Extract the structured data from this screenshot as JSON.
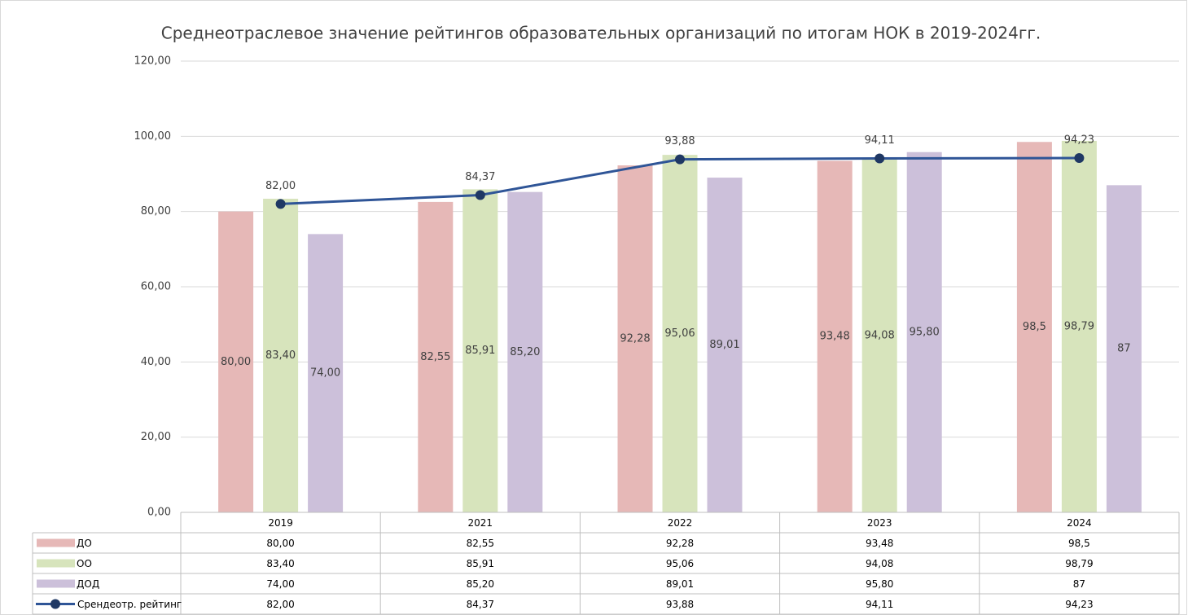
{
  "chart_data": {
    "type": "bar",
    "title": "Среднеотраслевое значение рейтингов образовательных организаций по итогам НОК в 2019-2024гг.",
    "categories": [
      "2019",
      "2021",
      "2022",
      "2023",
      "2024"
    ],
    "series": [
      {
        "name": "ДО",
        "type": "bar",
        "color": "#e6b8b7",
        "values": [
          80,
          82.55,
          92.28,
          93.48,
          98.5
        ],
        "value_labels": [
          "80,00",
          "82,55",
          "92,28",
          "93,48",
          "98,5"
        ]
      },
      {
        "name": "ОО",
        "type": "bar",
        "color": "#d7e4bc",
        "values": [
          83.4,
          85.91,
          95.06,
          94.08,
          98.79
        ],
        "value_labels": [
          "83,40",
          "85,91",
          "95,06",
          "94,08",
          "98,79"
        ]
      },
      {
        "name": "ДОД",
        "type": "bar",
        "color": "#ccc0da",
        "values": [
          74,
          85.2,
          89.01,
          95.8,
          87
        ],
        "value_labels": [
          "74,00",
          "85,20",
          "89,01",
          "95,80",
          "87"
        ]
      },
      {
        "name": "Срендеотр. рейтинг",
        "type": "line",
        "color": "#2f5597",
        "values": [
          82,
          84.37,
          93.88,
          94.11,
          94.23
        ],
        "value_labels": [
          "82,00",
          "84,37",
          "93,88",
          "94,11",
          "94,23"
        ]
      }
    ],
    "ylim": [
      0,
      120
    ],
    "yticks": [
      {
        "value": 0,
        "label": "0,00"
      },
      {
        "value": 20,
        "label": "20,00"
      },
      {
        "value": 40,
        "label": "40,00"
      },
      {
        "value": 60,
        "label": "60,00"
      },
      {
        "value": 80,
        "label": "80,00"
      },
      {
        "value": 100,
        "label": "100,00"
      },
      {
        "value": 120,
        "label": "120,00"
      }
    ],
    "grid": true
  }
}
